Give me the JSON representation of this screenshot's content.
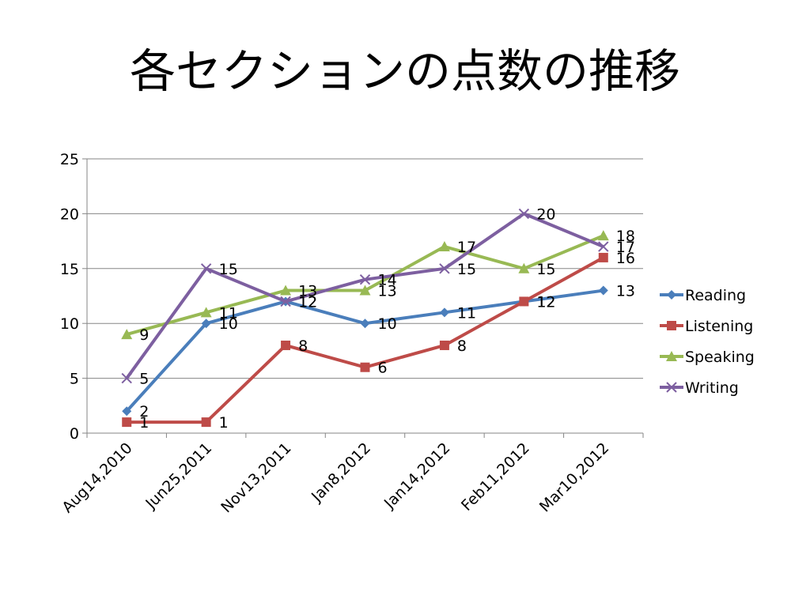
{
  "title": "各セクションの点数の推移",
  "chart_data": {
    "type": "line",
    "title": "各セクションの点数の推移",
    "categories": [
      "Aug14,2010",
      "Jun25,2011",
      "Nov13,2011",
      "Jan8,2012",
      "Jan14,2012",
      "Feb11,2012",
      "Mar10,2012"
    ],
    "series": [
      {
        "name": "Reading",
        "values": [
          2,
          10,
          12,
          10,
          11,
          12,
          13
        ],
        "color": "#4a7ebb",
        "marker": "diamond"
      },
      {
        "name": "Listening",
        "values": [
          1,
          1,
          8,
          6,
          8,
          12,
          16
        ],
        "color": "#be4b48",
        "marker": "square"
      },
      {
        "name": "Speaking",
        "values": [
          9,
          11,
          13,
          13,
          17,
          15,
          18
        ],
        "color": "#98b954",
        "marker": "triangle"
      },
      {
        "name": "Writing",
        "values": [
          5,
          15,
          12,
          14,
          15,
          20,
          17
        ],
        "color": "#7d5fa0",
        "marker": "x"
      }
    ],
    "xlabel": "",
    "ylabel": "",
    "ylim": [
      0,
      25
    ],
    "yticks": [
      0,
      5,
      10,
      15,
      20,
      25
    ],
    "grid": true,
    "legend_position": "right",
    "data_labels": true
  }
}
